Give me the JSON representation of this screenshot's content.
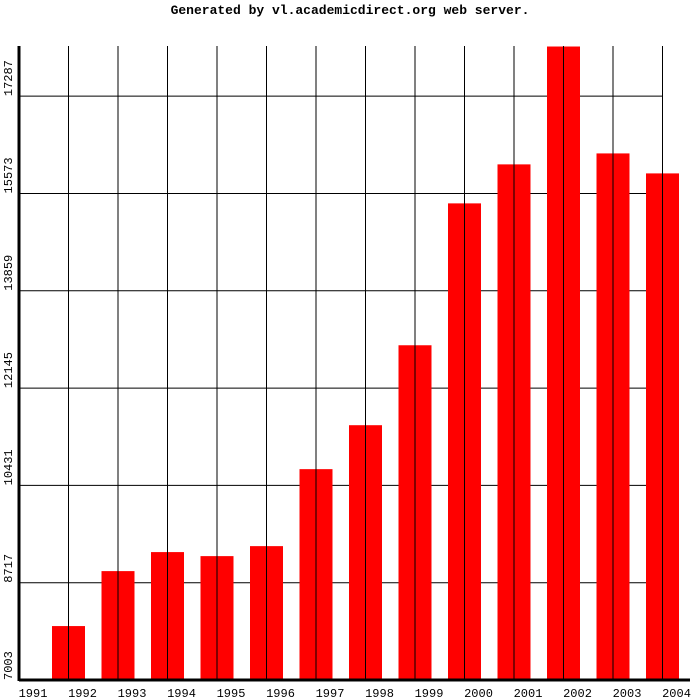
{
  "chart_data": {
    "type": "bar",
    "title": "Generated by vl.academicdirect.org web server.",
    "categories": [
      "1991",
      "1992",
      "1993",
      "1994",
      "1995",
      "1996",
      "1997",
      "1998",
      "1999",
      "2000",
      "2001",
      "2002",
      "2003",
      "2004"
    ],
    "values": [
      null,
      7953,
      8921,
      9256,
      9185,
      9361,
      10717,
      11491,
      12899,
      15398,
      16085,
      18161,
      16278,
      15926
    ],
    "color": "#ff0000",
    "ylim": [
      7003,
      18170
    ],
    "yticks": [
      7003,
      8717,
      10431,
      12145,
      13859,
      15573,
      17287
    ],
    "grid": true
  }
}
